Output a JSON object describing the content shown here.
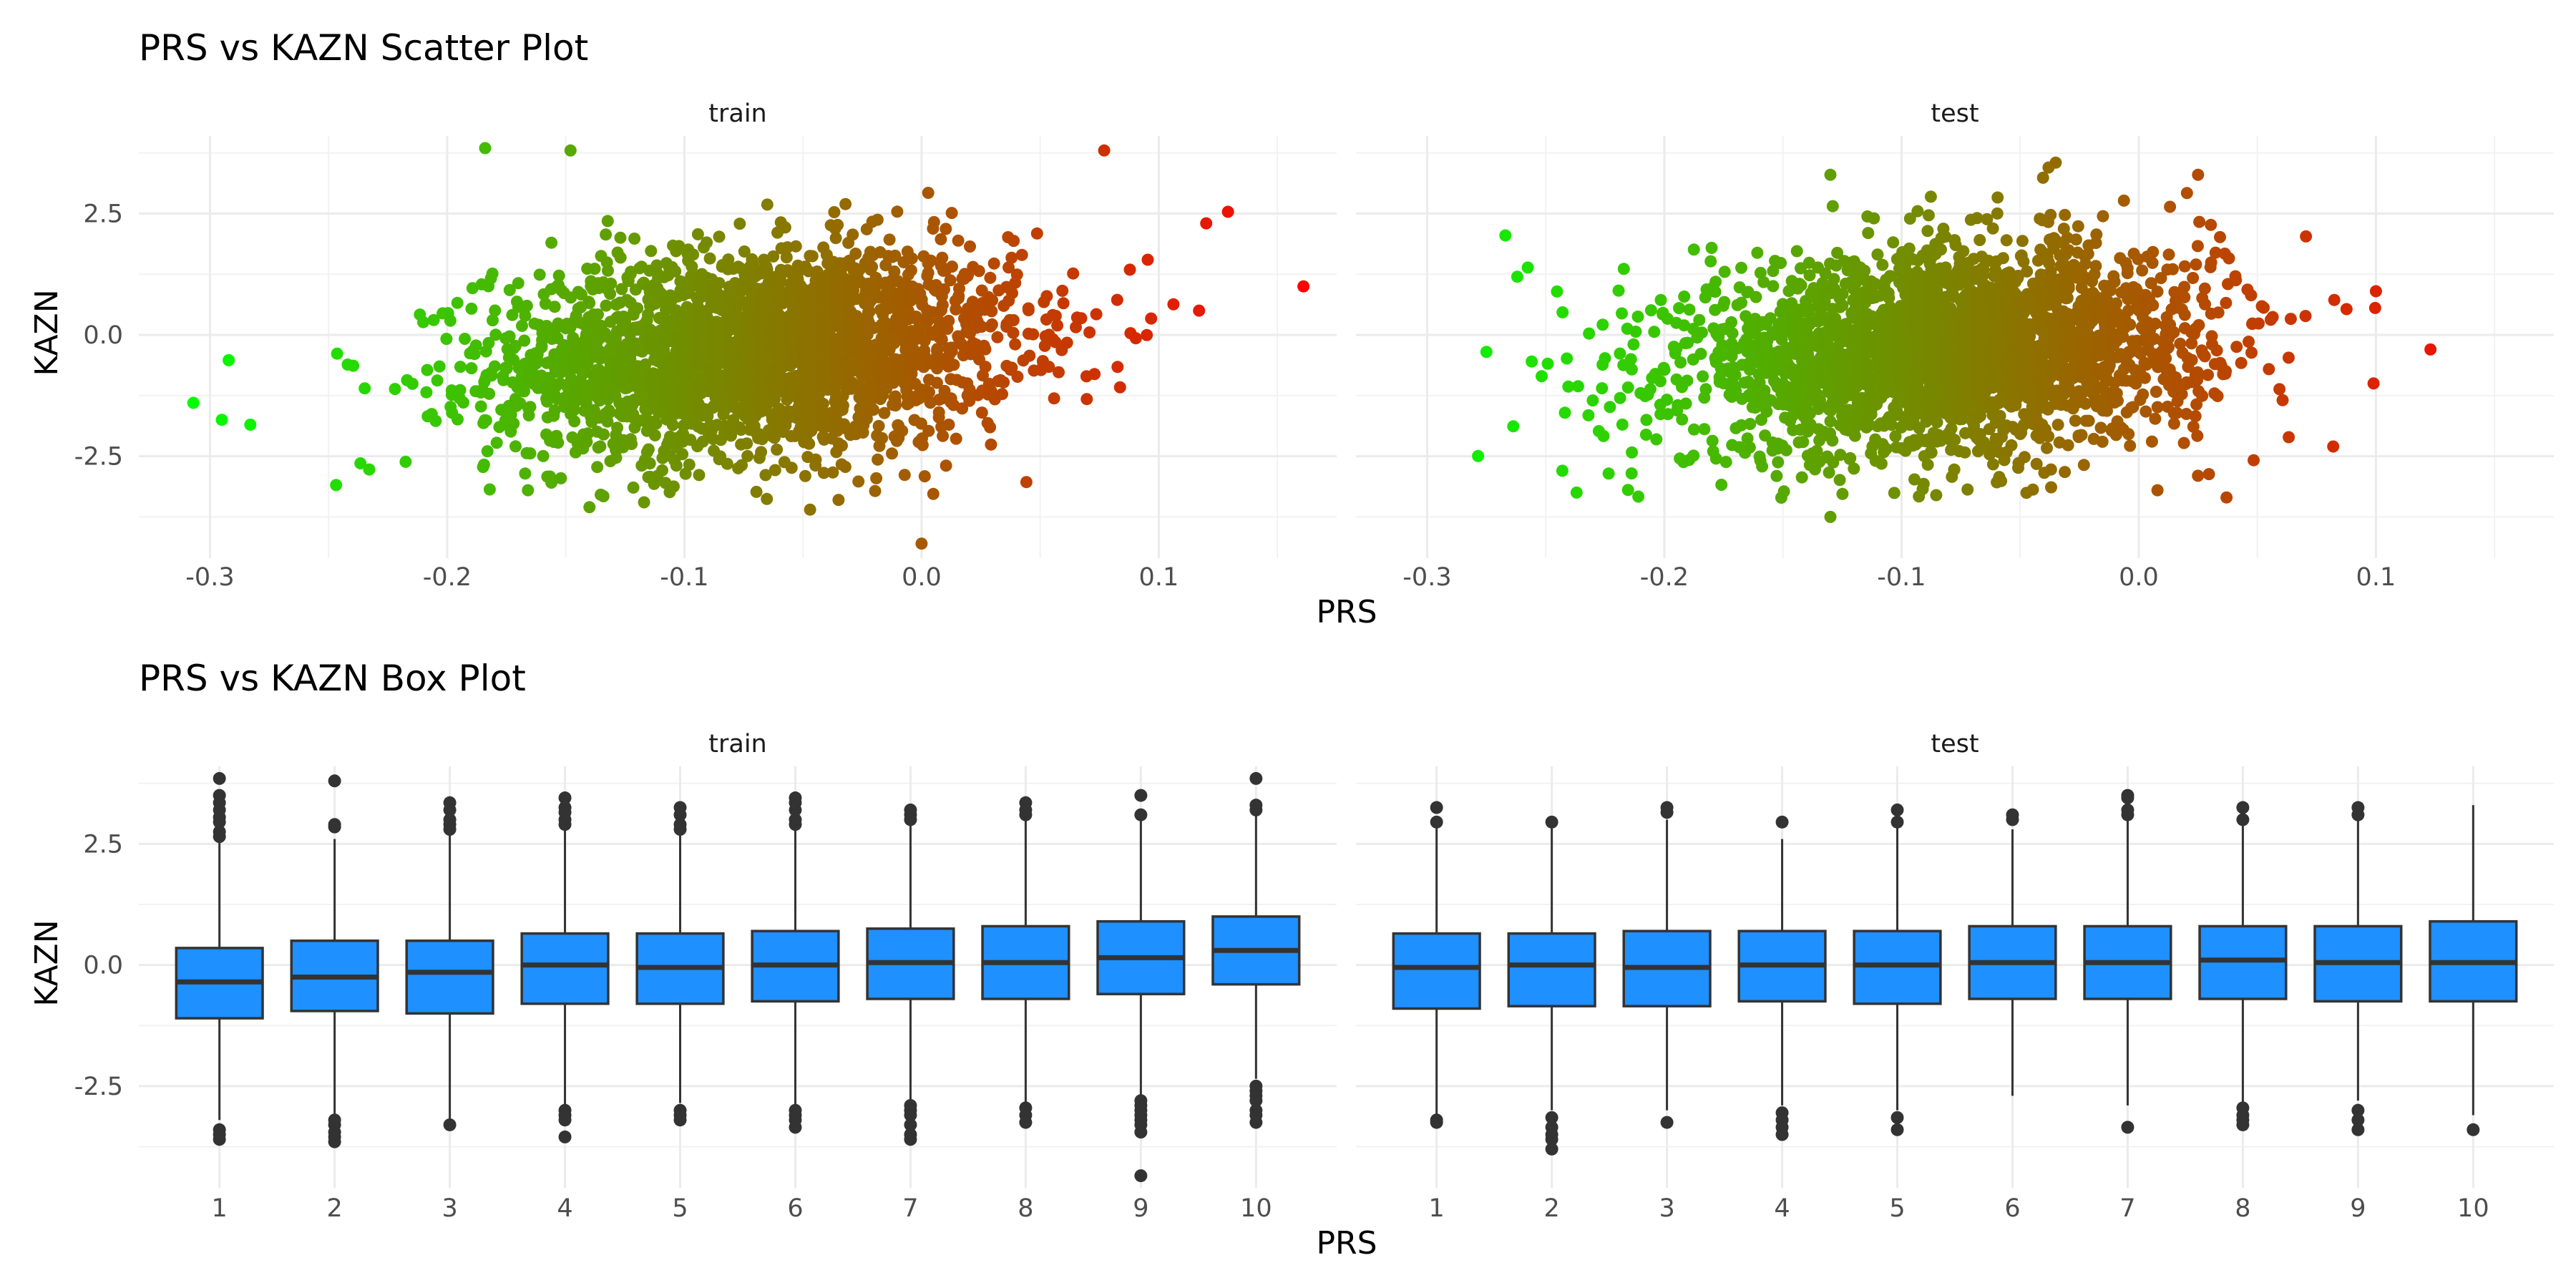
{
  "scatter": {
    "title": "PRS vs KAZN Scatter Plot",
    "xlabel": "PRS",
    "ylabel": "KAZN",
    "x_ticks": [
      -0.3,
      -0.2,
      -0.1,
      0.0,
      0.1
    ],
    "x_tick_labels": [
      "-0.3",
      "-0.2",
      "-0.1",
      "0.0",
      "0.1"
    ],
    "y_ticks": [
      -2.5,
      0.0,
      2.5
    ],
    "y_tick_labels": [
      "-2.5",
      "0.0",
      "2.5"
    ],
    "color_gradient": {
      "low": "#00ff00",
      "high": "#ff0000"
    }
  },
  "boxplot": {
    "title": "PRS vs KAZN Box Plot",
    "xlabel": "PRS",
    "ylabel": "KAZN",
    "y_tick_labels": [
      "-2.5",
      "0.0",
      "2.5"
    ],
    "box_fill": "#1e90ff"
  },
  "chart_data": [
    {
      "type": "scatter",
      "title": "PRS vs KAZN Scatter Plot",
      "xlabel": "PRS",
      "ylabel": "KAZN",
      "xlim": [
        -0.33,
        0.175
      ],
      "ylim": [
        -4.6,
        4.1
      ],
      "grid": true,
      "facets": [
        {
          "name": "train",
          "approx_cloud": {
            "x_center": -0.07,
            "x_sd": 0.055,
            "y_sd": 1.0
          },
          "extreme_points": [
            {
              "x": -0.307,
              "y": -1.4
            },
            {
              "x": -0.295,
              "y": -1.75
            },
            {
              "x": -0.283,
              "y": -1.85
            },
            {
              "x": -0.184,
              "y": 3.85
            },
            {
              "x": -0.148,
              "y": 3.8
            },
            {
              "x": 0.0,
              "y": -4.3
            },
            {
              "x": 0.077,
              "y": 3.8
            },
            {
              "x": 0.12,
              "y": 2.3
            },
            {
              "x": 0.161,
              "y": 1.0
            },
            {
              "x": -0.14,
              "y": -3.55
            },
            {
              "x": -0.117,
              "y": -3.45
            },
            {
              "x": -0.047,
              "y": -3.6
            },
            {
              "x": -0.035,
              "y": -3.4
            },
            {
              "x": 0.117,
              "y": 0.5
            }
          ]
        },
        {
          "name": "test",
          "approx_cloud": {
            "x_center": -0.08,
            "x_sd": 0.055,
            "y_sd": 1.0
          },
          "extreme_points": [
            {
              "x": -0.275,
              "y": -0.35
            },
            {
              "x": -0.267,
              "y": 2.05
            },
            {
              "x": -0.262,
              "y": 1.2
            },
            {
              "x": -0.243,
              "y": -2.8
            },
            {
              "x": -0.237,
              "y": -3.25
            },
            {
              "x": -0.13,
              "y": -3.75
            },
            {
              "x": -0.13,
              "y": 3.3
            },
            {
              "x": -0.035,
              "y": 3.55
            },
            {
              "x": -0.038,
              "y": 3.45
            },
            {
              "x": 0.037,
              "y": -3.35
            },
            {
              "x": 0.1,
              "y": 0.9
            },
            {
              "x": 0.099,
              "y": -1.0
            },
            {
              "x": 0.123,
              "y": -0.3
            },
            {
              "x": 0.082,
              "y": -2.3
            },
            {
              "x": 0.025,
              "y": 3.3
            }
          ]
        }
      ]
    },
    {
      "type": "box",
      "title": "PRS vs KAZN Box Plot",
      "xlabel": "PRS",
      "ylabel": "KAZN",
      "categories": [
        "1",
        "2",
        "3",
        "4",
        "5",
        "6",
        "7",
        "8",
        "9",
        "10"
      ],
      "ylim": [
        -4.6,
        4.1
      ],
      "grid": true,
      "facets": [
        {
          "name": "train",
          "boxes": [
            {
              "q1": -1.1,
              "median": -0.35,
              "q3": 0.35,
              "lower": -3.2,
              "upper": 2.55,
              "outliers": [
                2.65,
                2.75,
                2.95,
                3.05,
                3.2,
                3.35,
                3.5,
                3.85,
                -3.4,
                -3.5,
                -3.6
              ]
            },
            {
              "q1": -0.95,
              "median": -0.25,
              "q3": 0.5,
              "lower": -3.1,
              "upper": 2.6,
              "outliers": [
                2.85,
                2.9,
                3.8,
                -3.2,
                -3.3,
                -3.45,
                -3.55,
                -3.65
              ]
            },
            {
              "q1": -1.0,
              "median": -0.15,
              "q3": 0.5,
              "lower": -3.2,
              "upper": 2.7,
              "outliers": [
                2.8,
                2.9,
                3.0,
                3.2,
                3.35,
                -3.3
              ]
            },
            {
              "q1": -0.8,
              "median": 0.0,
              "q3": 0.65,
              "lower": -2.9,
              "upper": 2.85,
              "outliers": [
                2.9,
                3.0,
                3.15,
                3.25,
                3.45,
                -3.0,
                -3.1,
                -3.2,
                -3.55
              ]
            },
            {
              "q1": -0.8,
              "median": -0.05,
              "q3": 0.65,
              "lower": -2.85,
              "upper": 2.75,
              "outliers": [
                2.8,
                2.9,
                3.1,
                3.25,
                -3.0,
                -3.1,
                -3.2
              ]
            },
            {
              "q1": -0.75,
              "median": 0.0,
              "q3": 0.7,
              "lower": -2.9,
              "upper": 2.8,
              "outliers": [
                2.9,
                3.0,
                3.2,
                3.35,
                3.45,
                -3.0,
                -3.1,
                -3.2,
                -3.35
              ]
            },
            {
              "q1": -0.7,
              "median": 0.05,
              "q3": 0.75,
              "lower": -2.8,
              "upper": 2.9,
              "outliers": [
                3.0,
                3.1,
                3.2,
                -2.9,
                -3.0,
                -3.1,
                -3.3,
                -3.5,
                -3.6
              ]
            },
            {
              "q1": -0.7,
              "median": 0.05,
              "q3": 0.8,
              "lower": -2.85,
              "upper": 3.0,
              "outliers": [
                3.1,
                3.2,
                3.35,
                -2.95,
                -3.1,
                -3.25
              ]
            },
            {
              "q1": -0.6,
              "median": 0.15,
              "q3": 0.9,
              "lower": -2.7,
              "upper": 3.0,
              "outliers": [
                3.1,
                3.5,
                -2.8,
                -2.9,
                -3.0,
                -3.1,
                -3.2,
                -3.3,
                -3.45,
                -4.35
              ]
            },
            {
              "q1": -0.4,
              "median": 0.3,
              "q3": 1.0,
              "lower": -2.35,
              "upper": 3.1,
              "outliers": [
                3.2,
                3.3,
                3.85,
                -2.5,
                -2.6,
                -2.7,
                -2.8,
                -3.0,
                -3.1,
                -3.25
              ]
            }
          ]
        },
        {
          "name": "test",
          "boxes": [
            {
              "q1": -0.9,
              "median": -0.05,
              "q3": 0.65,
              "lower": -3.1,
              "upper": 2.9,
              "outliers": [
                2.95,
                3.25,
                -3.2,
                -3.25
              ]
            },
            {
              "q1": -0.85,
              "median": 0.0,
              "q3": 0.65,
              "lower": -3.0,
              "upper": 2.9,
              "outliers": [
                2.95,
                -3.15,
                -3.35,
                -3.5,
                -3.6,
                -3.8
              ]
            },
            {
              "q1": -0.85,
              "median": -0.05,
              "q3": 0.7,
              "lower": -3.0,
              "upper": 3.0,
              "outliers": [
                3.15,
                3.25,
                -3.25
              ]
            },
            {
              "q1": -0.75,
              "median": 0.0,
              "q3": 0.7,
              "lower": -2.9,
              "upper": 2.6,
              "outliers": [
                2.95,
                -3.05,
                -3.2,
                -3.35,
                -3.5
              ]
            },
            {
              "q1": -0.8,
              "median": 0.0,
              "q3": 0.7,
              "lower": -3.0,
              "upper": 2.85,
              "outliers": [
                2.95,
                3.2,
                -3.15,
                -3.4
              ]
            },
            {
              "q1": -0.7,
              "median": 0.05,
              "q3": 0.8,
              "lower": -2.7,
              "upper": 2.8,
              "outliers": [
                3.0,
                3.1
              ]
            },
            {
              "q1": -0.7,
              "median": 0.05,
              "q3": 0.8,
              "lower": -2.9,
              "upper": 3.0,
              "outliers": [
                3.1,
                3.2,
                3.45,
                3.5,
                -3.35
              ]
            },
            {
              "q1": -0.7,
              "median": 0.1,
              "q3": 0.8,
              "lower": -2.85,
              "upper": 2.95,
              "outliers": [
                3.0,
                3.25,
                -2.95,
                -3.1,
                -3.2,
                -3.3
              ]
            },
            {
              "q1": -0.75,
              "median": 0.05,
              "q3": 0.8,
              "lower": -2.8,
              "upper": 3.0,
              "outliers": [
                3.1,
                3.25,
                -3.0,
                -3.2,
                -3.4
              ]
            },
            {
              "q1": -0.75,
              "median": 0.05,
              "q3": 0.9,
              "lower": -3.1,
              "upper": 3.3,
              "outliers": [
                -3.4
              ]
            }
          ]
        }
      ]
    }
  ]
}
